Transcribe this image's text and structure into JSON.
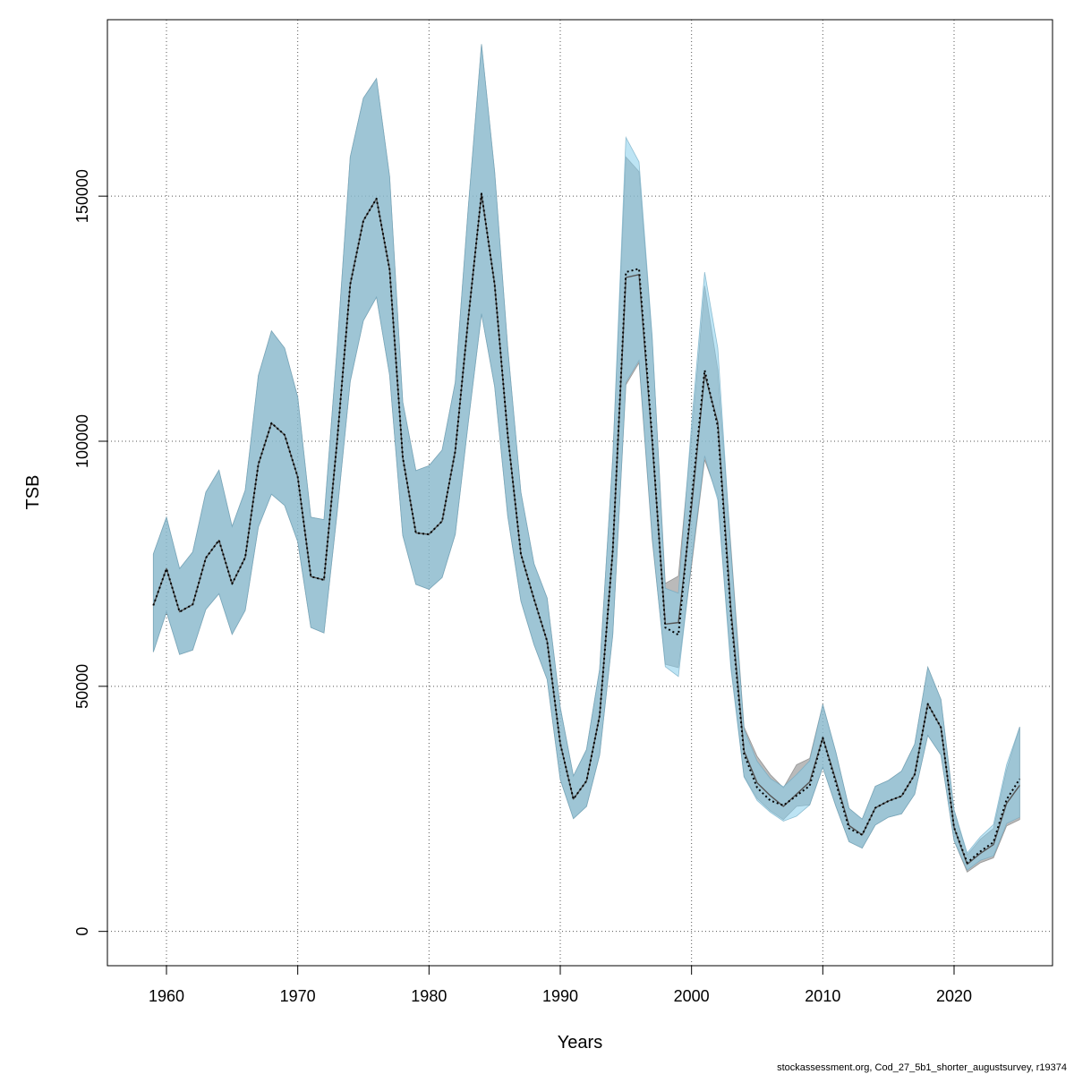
{
  "chart_data": {
    "type": "line",
    "title": "",
    "xlabel": "Years",
    "ylabel": "TSB",
    "xlim": [
      1955.5,
      2027.5
    ],
    "ylim": [
      -7000,
      186000
    ],
    "x_ticks": [
      1960,
      1970,
      1980,
      1990,
      2000,
      2010,
      2020
    ],
    "y_ticks": [
      0,
      50000,
      100000,
      150000
    ],
    "x_tick_labels": [
      "1960",
      "1970",
      "1980",
      "1990",
      "2000",
      "2010",
      "2020"
    ],
    "y_tick_labels": [
      "0",
      "50000",
      "100000",
      "150000"
    ],
    "grid": true,
    "grid_style": "dotted",
    "footer": "stockassessment.org, Cod_27_5b1_shorter_augustsurvey, r19374",
    "colors": {
      "band_gray": "#8c8c8c",
      "band_blue": "#87ceeb",
      "line_gray": "#555555",
      "line_blue": "#000000",
      "grid": "#555555"
    },
    "years": [
      1959,
      1960,
      1961,
      1962,
      1963,
      1964,
      1965,
      1966,
      1967,
      1968,
      1969,
      1970,
      1971,
      1972,
      1973,
      1974,
      1975,
      1976,
      1977,
      1978,
      1979,
      1980,
      1981,
      1982,
      1983,
      1984,
      1985,
      1986,
      1987,
      1988,
      1989,
      1990,
      1991,
      1992,
      1993,
      1994,
      1995,
      1996,
      1997,
      1998,
      1999,
      2000,
      2001,
      2002,
      2003,
      2004,
      2005,
      2006,
      2007,
      2008,
      2009,
      2010,
      2011,
      2012,
      2013,
      2014,
      2015,
      2016,
      2017,
      2018,
      2019,
      2020,
      2021,
      2022,
      2023,
      2024,
      2025
    ],
    "series": [
      {
        "name": "",
        "style": "solid-gray",
        "estimate": [
          66500,
          74000,
          65200,
          66700,
          76200,
          79800,
          70900,
          76300,
          95300,
          103700,
          101300,
          92700,
          72400,
          71700,
          100000,
          132000,
          145000,
          149500,
          135000,
          96700,
          81300,
          81000,
          83700,
          98000,
          125200,
          150500,
          132000,
          101200,
          77000,
          67800,
          59200,
          38300,
          27000,
          30700,
          44000,
          77700,
          133400,
          134000,
          100000,
          62700,
          63000,
          86500,
          113700,
          103800,
          65700,
          36800,
          30300,
          27700,
          25500,
          28000,
          30500,
          39500,
          30800,
          21600,
          19700,
          25200,
          26600,
          27600,
          32000,
          46400,
          41600,
          21200,
          13700,
          15900,
          17700,
          26100,
          29800
        ],
        "lower": [
          57000,
          65200,
          56500,
          57400,
          65700,
          68900,
          60600,
          65500,
          82500,
          89200,
          86900,
          79500,
          62000,
          60900,
          85400,
          112200,
          124600,
          129400,
          113500,
          80800,
          70800,
          69800,
          72200,
          81000,
          104000,
          126000,
          111200,
          84700,
          67400,
          58500,
          51400,
          31000,
          23000,
          25500,
          36000,
          60500,
          111500,
          116000,
          80000,
          54500,
          53800,
          74500,
          96200,
          88700,
          54300,
          31600,
          27100,
          24600,
          22800,
          25500,
          25800,
          33500,
          25500,
          18300,
          17000,
          21700,
          23300,
          24000,
          28000,
          40000,
          36000,
          18500,
          12100,
          14000,
          15000,
          21500,
          22800
        ],
        "upper": [
          77000,
          84500,
          74000,
          77400,
          89600,
          94100,
          82600,
          90000,
          113400,
          122500,
          119000,
          109000,
          84500,
          84000,
          119000,
          158000,
          170000,
          174000,
          154000,
          108000,
          94000,
          95000,
          98200,
          112000,
          148000,
          181000,
          155000,
          119000,
          89600,
          75000,
          68000,
          45700,
          31700,
          37100,
          53500,
          96700,
          158000,
          155000,
          121000,
          71000,
          72500,
          101200,
          131700,
          114600,
          78500,
          41700,
          35700,
          32000,
          29300,
          34000,
          35300,
          46300,
          36500,
          25100,
          22900,
          29600,
          30800,
          32700,
          38200,
          53900,
          47300,
          24800,
          15600,
          18800,
          21000,
          33000,
          41700
        ]
      },
      {
        "name": "",
        "style": "dotted-blue",
        "estimate": [
          66500,
          74000,
          65200,
          66700,
          76200,
          79800,
          70900,
          76300,
          95300,
          103700,
          101300,
          92700,
          72400,
          71700,
          100000,
          132000,
          145000,
          149500,
          135000,
          96700,
          81300,
          81000,
          83700,
          98000,
          125200,
          150500,
          132000,
          101200,
          77000,
          67800,
          59200,
          38300,
          27000,
          30700,
          44000,
          77700,
          134500,
          135200,
          100700,
          62000,
          60500,
          88000,
          114500,
          103000,
          64700,
          36200,
          29300,
          26700,
          25700,
          27700,
          29700,
          39500,
          30300,
          21000,
          19700,
          25200,
          26600,
          27600,
          32000,
          46400,
          41600,
          21200,
          14000,
          16300,
          18200,
          26900,
          31100
        ],
        "lower": [
          57000,
          65200,
          56500,
          57400,
          65700,
          68900,
          60600,
          65500,
          82500,
          89200,
          86900,
          79500,
          62000,
          60900,
          85400,
          112200,
          124600,
          129400,
          113500,
          80800,
          70800,
          69800,
          72200,
          81000,
          104000,
          126000,
          111200,
          84700,
          67400,
          58500,
          51400,
          31000,
          23000,
          25500,
          36000,
          60500,
          112000,
          116500,
          80500,
          54000,
          52000,
          75500,
          97000,
          88000,
          53500,
          31500,
          26700,
          24300,
          22500,
          23500,
          25800,
          33500,
          25500,
          18300,
          17000,
          21700,
          23300,
          24000,
          28000,
          40000,
          36000,
          18500,
          12500,
          14500,
          15400,
          22000,
          23300
        ],
        "upper": [
          77000,
          84500,
          74000,
          77400,
          89600,
          94100,
          82600,
          90000,
          113400,
          122500,
          119000,
          109000,
          84500,
          84000,
          119000,
          158000,
          170000,
          174000,
          154000,
          108000,
          94000,
          95000,
          98200,
          112000,
          148000,
          181000,
          155000,
          119000,
          89600,
          75000,
          68000,
          45700,
          31700,
          37100,
          53500,
          96700,
          162000,
          157000,
          121500,
          70000,
          69000,
          103500,
          134500,
          119000,
          77500,
          41200,
          34700,
          31200,
          29500,
          32000,
          34800,
          46300,
          36500,
          25100,
          22900,
          29600,
          30800,
          32700,
          38200,
          53900,
          47300,
          24800,
          16000,
          19300,
          21800,
          34000,
          41700
        ]
      }
    ]
  }
}
